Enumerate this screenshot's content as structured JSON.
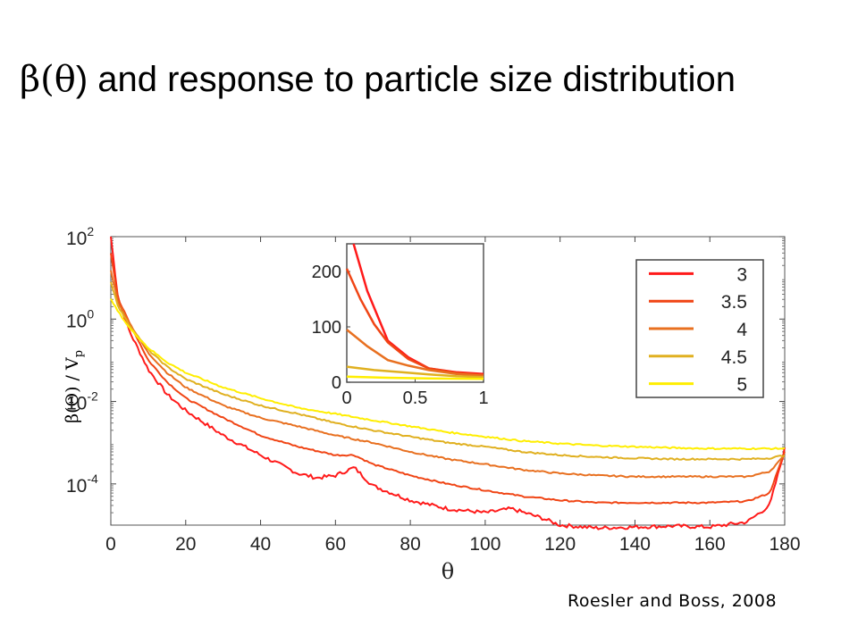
{
  "slide": {
    "title_prefix": "β(",
    "title_theta": "θ",
    "title_rest": ") and response to particle size distribution",
    "citation": "Roesler and Boss, 2008"
  },
  "chart_data": {
    "type": "line",
    "title": "",
    "xlabel": "θ",
    "ylabel_main": "β(Θ) / V",
    "ylabel_sub": "p",
    "yscale": "log",
    "xlim": [
      0,
      180
    ],
    "ylim": [
      1e-05,
      100
    ],
    "xticks": [
      "0",
      "20",
      "40",
      "60",
      "80",
      "100",
      "120",
      "140",
      "160",
      "180"
    ],
    "yticks": [
      {
        "base": "10",
        "exp": "2"
      },
      {
        "base": "10",
        "exp": "0"
      },
      {
        "base": "10",
        "exp": "-2"
      },
      {
        "base": "10",
        "exp": "-4"
      }
    ],
    "legend_position": "top-right",
    "series": [
      {
        "name": "3",
        "color": "#ff1a1a",
        "x": [
          0,
          2,
          5,
          10,
          15,
          20,
          30,
          40,
          50,
          55,
          60,
          65,
          70,
          80,
          90,
          100,
          107,
          115,
          120,
          130,
          140,
          150,
          160,
          170,
          176,
          180
        ],
        "y": [
          100,
          3,
          0.5,
          0.06,
          0.015,
          0.006,
          0.0015,
          0.0005,
          0.00018,
          0.00014,
          0.00016,
          0.00025,
          9e-05,
          4e-05,
          2.5e-05,
          2e-05,
          2.5e-05,
          1.5e-05,
          1e-05,
          8.5e-06,
          9e-06,
          9.5e-06,
          9e-06,
          1.2e-05,
          3e-05,
          0.0007
        ]
      },
      {
        "name": "3.5",
        "color": "#f04515",
        "x": [
          0,
          2,
          5,
          10,
          15,
          20,
          30,
          40,
          50,
          60,
          65,
          70,
          80,
          90,
          100,
          110,
          120,
          130,
          140,
          150,
          160,
          170,
          176,
          180
        ],
        "y": [
          40,
          3,
          0.8,
          0.1,
          0.03,
          0.012,
          0.004,
          0.0015,
          0.0008,
          0.0005,
          0.0005,
          0.0003,
          0.00016,
          0.0001,
          7e-05,
          5e-05,
          4e-05,
          3.5e-05,
          3.5e-05,
          3.5e-05,
          3.5e-05,
          3.8e-05,
          6e-05,
          0.0006
        ]
      },
      {
        "name": "4",
        "color": "#e87020",
        "x": [
          0,
          2,
          5,
          10,
          15,
          20,
          30,
          40,
          50,
          60,
          70,
          80,
          90,
          100,
          110,
          120,
          130,
          140,
          150,
          160,
          170,
          176,
          180
        ],
        "y": [
          15,
          2.5,
          0.8,
          0.15,
          0.05,
          0.022,
          0.008,
          0.004,
          0.0025,
          0.0015,
          0.001,
          0.0006,
          0.0004,
          0.0003,
          0.00022,
          0.00018,
          0.00016,
          0.00015,
          0.00015,
          0.00015,
          0.00015,
          0.0002,
          0.0005
        ]
      },
      {
        "name": "4.5",
        "color": "#e0b020",
        "x": [
          0,
          2,
          5,
          10,
          15,
          20,
          30,
          40,
          50,
          60,
          70,
          80,
          90,
          100,
          110,
          120,
          130,
          140,
          150,
          160,
          170,
          176,
          180
        ],
        "y": [
          8,
          2,
          0.7,
          0.18,
          0.07,
          0.035,
          0.015,
          0.008,
          0.005,
          0.003,
          0.002,
          0.0014,
          0.001,
          0.0008,
          0.0006,
          0.0005,
          0.00045,
          0.00042,
          0.0004,
          0.0004,
          0.0004,
          0.00042,
          0.0005
        ]
      },
      {
        "name": "5",
        "color": "#ffee00",
        "x": [
          0,
          2,
          5,
          10,
          15,
          20,
          30,
          40,
          50,
          60,
          70,
          80,
          90,
          100,
          110,
          120,
          130,
          140,
          150,
          160,
          170,
          180
        ],
        "y": [
          3,
          1.5,
          0.6,
          0.2,
          0.09,
          0.05,
          0.022,
          0.012,
          0.007,
          0.005,
          0.0035,
          0.0025,
          0.0018,
          0.0014,
          0.0011,
          0.00095,
          0.00085,
          0.0008,
          0.00075,
          0.00072,
          0.00072,
          0.00072
        ]
      }
    ],
    "inset": {
      "type": "line",
      "xlim": [
        0,
        1
      ],
      "ylim": [
        0,
        250
      ],
      "xticks": [
        "0",
        "0.5",
        "1"
      ],
      "yticks": [
        "0",
        "100",
        "200"
      ],
      "series": [
        {
          "name": "3",
          "x": [
            0.05,
            0.15,
            0.3,
            0.45,
            0.6,
            0.8,
            1.0
          ],
          "y": [
            250,
            165,
            75,
            45,
            25,
            18,
            15
          ]
        },
        {
          "name": "3.5",
          "x": [
            0,
            0.1,
            0.2,
            0.3,
            0.45,
            0.6,
            0.8,
            1.0
          ],
          "y": [
            205,
            150,
            105,
            72,
            42,
            25,
            17,
            13
          ]
        },
        {
          "name": "4",
          "x": [
            0,
            0.15,
            0.3,
            0.45,
            0.6,
            0.8,
            1.0
          ],
          "y": [
            95,
            65,
            40,
            30,
            22,
            15,
            12
          ]
        },
        {
          "name": "4.5",
          "x": [
            0,
            0.2,
            0.4,
            0.6,
            0.8,
            1.0
          ],
          "y": [
            28,
            22,
            18,
            14,
            11,
            9
          ]
        },
        {
          "name": "5",
          "x": [
            0,
            0.3,
            0.6,
            1.0
          ],
          "y": [
            10,
            8,
            7,
            6
          ]
        }
      ]
    }
  }
}
